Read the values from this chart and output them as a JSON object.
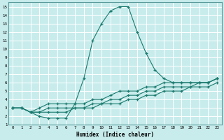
{
  "xlabel": "Humidex (Indice chaleur)",
  "bg_color": "#c8ecec",
  "grid_color": "#ffffff",
  "line_color": "#1a7a6e",
  "xlim": [
    -0.5,
    23.5
  ],
  "ylim": [
    1,
    15.5
  ],
  "xticks": [
    0,
    1,
    2,
    3,
    4,
    5,
    6,
    7,
    8,
    9,
    10,
    11,
    12,
    13,
    14,
    15,
    16,
    17,
    18,
    19,
    20,
    21,
    22,
    23
  ],
  "yticks": [
    1,
    2,
    3,
    4,
    5,
    6,
    7,
    8,
    9,
    10,
    11,
    12,
    13,
    14,
    15
  ],
  "line1_x": [
    0,
    1,
    2,
    3,
    4,
    5,
    6,
    7,
    8,
    9,
    10,
    11,
    12,
    13,
    14,
    15,
    16,
    17,
    18,
    19,
    20,
    21,
    22,
    23
  ],
  "line1_y": [
    3.0,
    3.0,
    2.5,
    2.0,
    1.8,
    1.8,
    1.8,
    3.5,
    6.5,
    11.0,
    13.0,
    14.5,
    15.0,
    15.0,
    12.0,
    9.5,
    7.5,
    6.5,
    6.0,
    6.0,
    6.0,
    6.0,
    6.0,
    6.5
  ],
  "line2_x": [
    0,
    1,
    2,
    3,
    4,
    5,
    6,
    7,
    8,
    9,
    10,
    11,
    12,
    13,
    14,
    15,
    16,
    17,
    18,
    19,
    20,
    21,
    22,
    23
  ],
  "line2_y": [
    3.0,
    3.0,
    2.5,
    3.0,
    3.5,
    3.5,
    3.5,
    3.5,
    3.5,
    4.0,
    4.0,
    4.5,
    5.0,
    5.0,
    5.0,
    5.5,
    5.5,
    6.0,
    6.0,
    6.0,
    6.0,
    6.0,
    6.0,
    6.5
  ],
  "line3_x": [
    0,
    1,
    2,
    3,
    4,
    5,
    6,
    7,
    8,
    9,
    10,
    11,
    12,
    13,
    14,
    15,
    16,
    17,
    18,
    19,
    20,
    21,
    22,
    23
  ],
  "line3_y": [
    3.0,
    3.0,
    2.5,
    2.5,
    3.0,
    3.0,
    3.0,
    3.0,
    3.0,
    3.5,
    3.5,
    4.0,
    4.0,
    4.5,
    4.5,
    5.0,
    5.0,
    5.5,
    5.5,
    5.5,
    5.5,
    6.0,
    6.0,
    6.5
  ],
  "line4_x": [
    0,
    1,
    2,
    3,
    4,
    5,
    6,
    7,
    8,
    9,
    10,
    11,
    12,
    13,
    14,
    15,
    16,
    17,
    18,
    19,
    20,
    21,
    22,
    23
  ],
  "line4_y": [
    3.0,
    3.0,
    2.5,
    2.5,
    2.5,
    2.5,
    2.5,
    3.0,
    3.0,
    3.0,
    3.5,
    3.5,
    3.5,
    4.0,
    4.0,
    4.5,
    4.5,
    5.0,
    5.0,
    5.0,
    5.5,
    5.5,
    5.5,
    6.0
  ]
}
